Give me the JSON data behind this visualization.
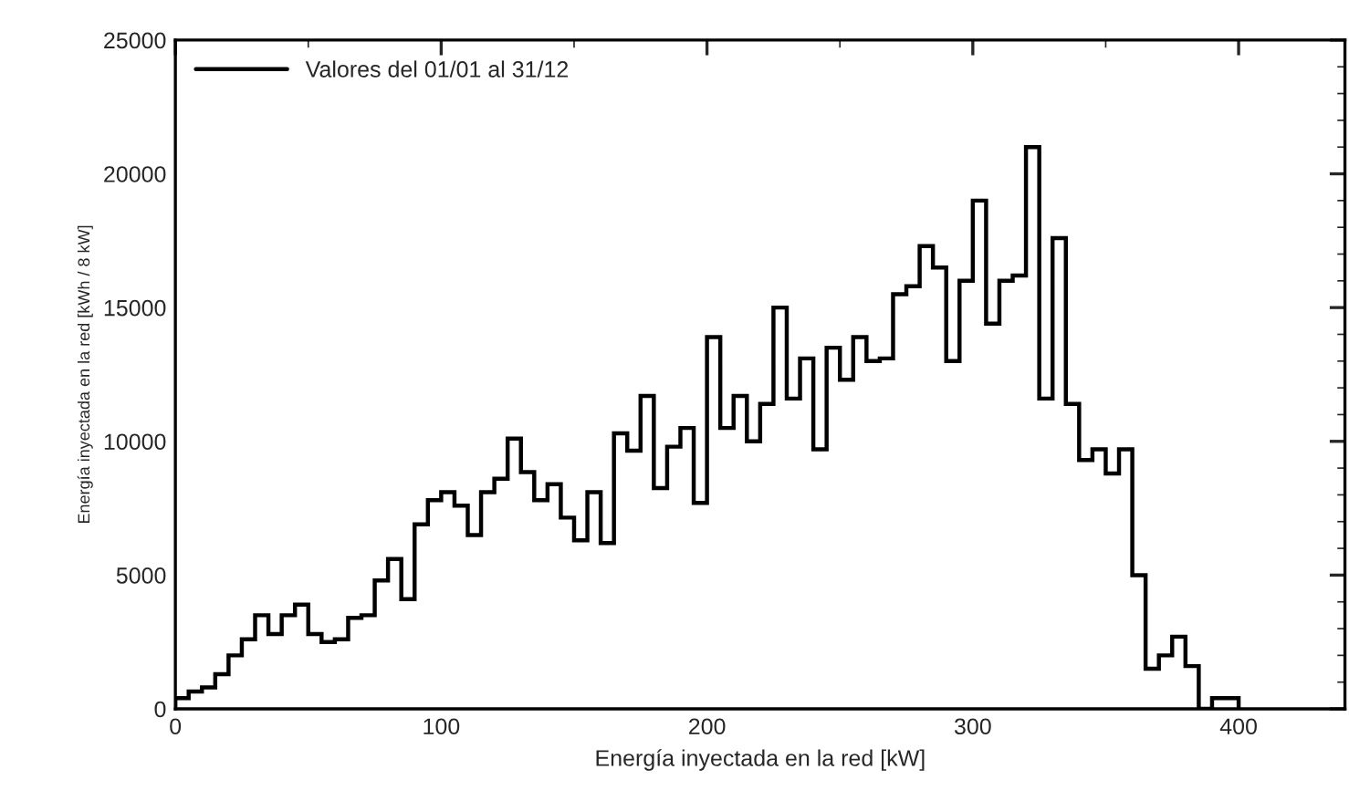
{
  "chart_data": {
    "type": "histogram",
    "xlabel": "Energía inyectada en la red [kW]",
    "ylabel": "Energía inyectada en la red [kWh / 8 kW]",
    "bins": [
      0,
      5,
      10,
      15,
      20,
      25,
      30,
      35,
      40,
      45,
      50,
      55,
      60,
      65,
      70,
      75,
      80,
      85,
      90,
      95,
      100,
      105,
      110,
      115,
      120,
      125,
      130,
      135,
      140,
      145,
      150,
      155,
      160,
      165,
      170,
      175,
      180,
      185,
      190,
      195,
      200,
      205,
      210,
      215,
      220,
      225,
      230,
      235,
      240,
      245,
      250,
      255,
      260,
      265,
      270,
      275,
      280,
      285,
      290,
      295,
      300,
      305,
      310,
      315,
      320,
      325,
      330,
      335,
      340,
      345,
      350,
      355,
      360,
      365,
      370,
      375,
      380,
      385,
      390,
      395,
      400
    ],
    "series": [
      {
        "name": "Valores del 01/01 al 31/12",
        "color": "#000000",
        "values": [
          400,
          650,
          800,
          1300,
          2000,
          2600,
          3500,
          2800,
          3500,
          3900,
          2800,
          2500,
          2600,
          3400,
          3500,
          4800,
          5600,
          4100,
          6900,
          7800,
          8100,
          7600,
          6500,
          8100,
          8600,
          10100,
          8850,
          7800,
          8400,
          7150,
          6300,
          8100,
          6200,
          10300,
          9650,
          11700,
          8250,
          9800,
          10500,
          7700,
          13900,
          10500,
          11700,
          10000,
          11400,
          15000,
          11600,
          13100,
          9700,
          13500,
          12300,
          13900,
          13000,
          13100,
          15500,
          15800,
          17300,
          16500,
          13000,
          16000,
          19000,
          14400,
          16000,
          16200,
          21000,
          11600,
          17600,
          11400,
          9300,
          9700,
          8800,
          9700,
          5000,
          1500,
          2000,
          2700,
          1600,
          0,
          400,
          400
        ]
      }
    ],
    "xlim": [
      0,
      440
    ],
    "xticks": [
      0,
      100,
      200,
      300,
      400
    ],
    "ylim": [
      0,
      25000
    ],
    "yticks": [
      0,
      5000,
      10000,
      15000,
      20000,
      25000
    ],
    "legend": "top left",
    "grid": false
  }
}
